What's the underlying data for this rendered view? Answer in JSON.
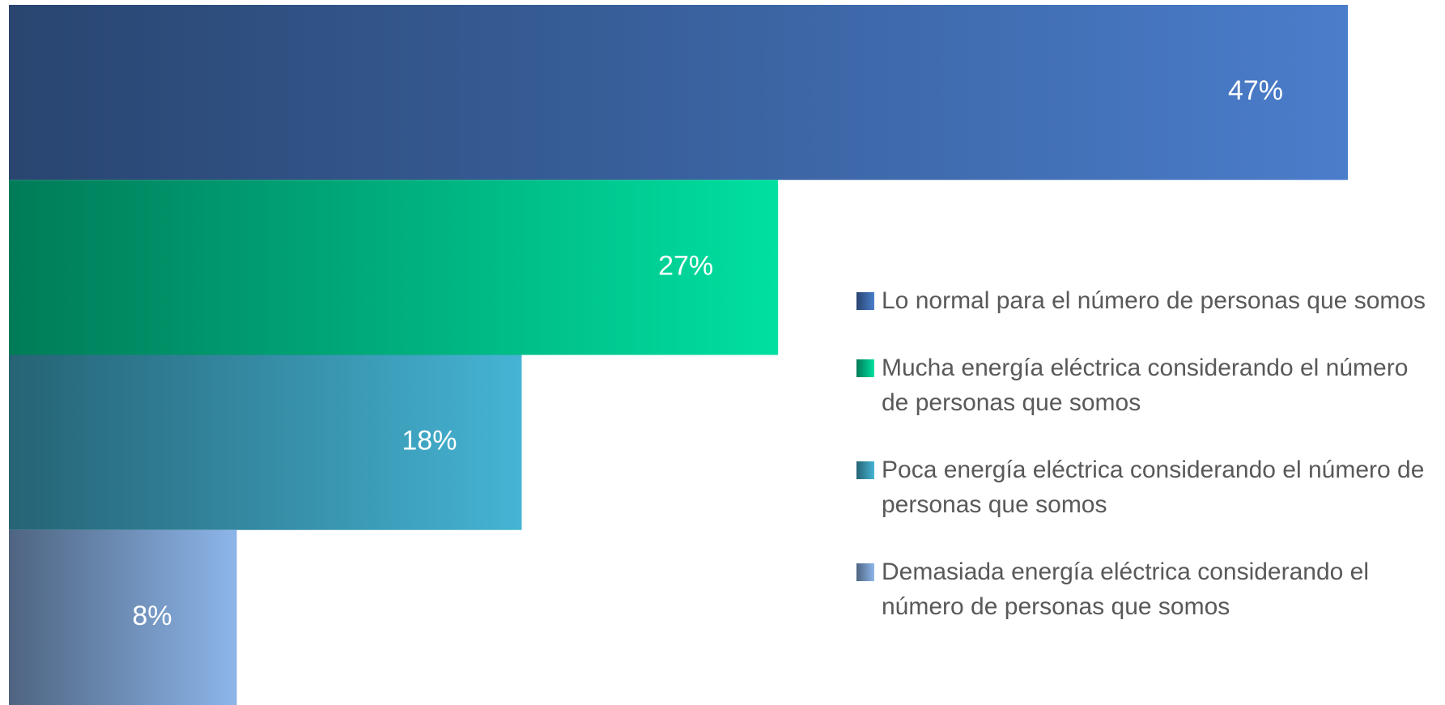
{
  "chart_data": {
    "type": "bar",
    "orientation": "horizontal",
    "categories": [
      "Lo normal para el número de personas que somos",
      "Mucha energía eléctrica considerando el número de personas que somos",
      "Poca energía eléctrica considerando el número de personas que somos",
      "Demasiada energía eléctrica considerando el número de personas que somos"
    ],
    "values": [
      47,
      27,
      18,
      8
    ],
    "value_labels": [
      "47%",
      "27%",
      "18%",
      "8%"
    ],
    "colors": [
      "#4a7dcb",
      "#00e0a0",
      "#45b4d4",
      "#8db6ea"
    ],
    "legend": "right"
  }
}
